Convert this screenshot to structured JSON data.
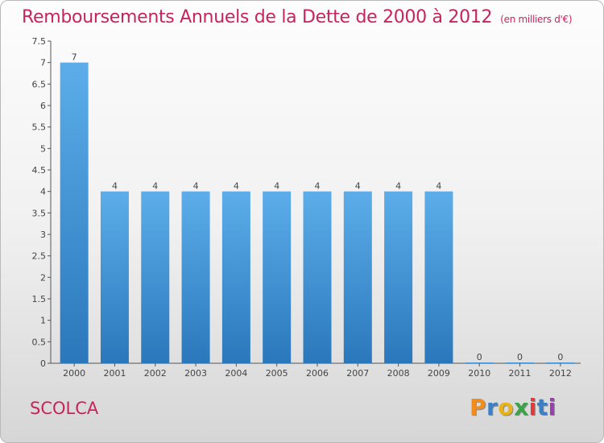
{
  "header": {
    "title": "Remboursements Annuels de la Dette de 2000 à 2012",
    "unit": "(en milliers d'€)"
  },
  "commune": "SCOLCA",
  "logo": {
    "letters": [
      "P",
      "r",
      "o",
      "x",
      "i",
      "t",
      "i"
    ],
    "colors": [
      "#f28c1c",
      "#3d7fc4",
      "#e8b21a",
      "#3da34a",
      "#e53a3a",
      "#3d7fc4",
      "#9a3fb0"
    ]
  },
  "chart_data": {
    "type": "bar",
    "title": "Remboursements Annuels de la Dette de 2000 à 2012",
    "ylabel": "",
    "xlabel": "",
    "categories": [
      "2000",
      "2001",
      "2002",
      "2003",
      "2004",
      "2005",
      "2006",
      "2007",
      "2008",
      "2009",
      "2010",
      "2011",
      "2012"
    ],
    "values": [
      7,
      4,
      4,
      4,
      4,
      4,
      4,
      4,
      4,
      4,
      0,
      0,
      0
    ],
    "data_labels": [
      "7",
      "4",
      "4",
      "4",
      "4",
      "4",
      "4",
      "4",
      "4",
      "4",
      "0",
      "0",
      "0"
    ],
    "ylim": [
      0,
      7.5
    ],
    "y_ticks": [
      "0",
      "0.5",
      "1",
      "1.5",
      "2",
      "2.5",
      "3",
      "3.5",
      "4",
      "4.5",
      "5",
      "5.5",
      "6",
      "6.5",
      "7",
      "7.5"
    ],
    "grid": false,
    "bar_color": "#3f93d8"
  }
}
